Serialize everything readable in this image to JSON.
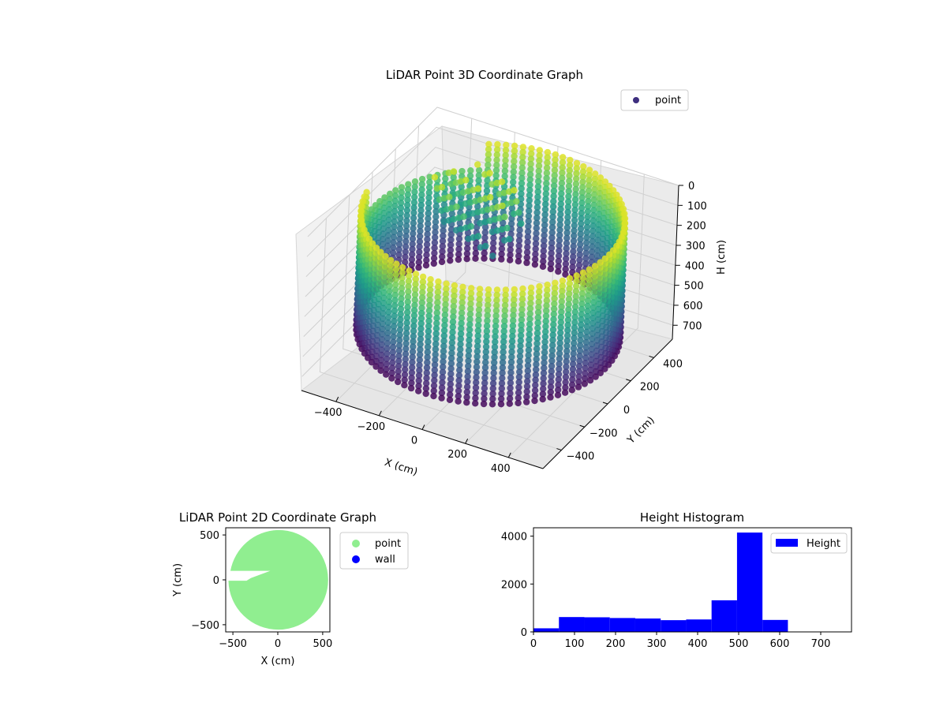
{
  "chart_data": [
    {
      "type": "scatter3d",
      "title": "LiDAR Point 3D Coordinate Graph",
      "xlabel": "X (cm)",
      "ylabel": "Y (cm)",
      "zlabel": "H (cm)",
      "x_ticks": [
        -400,
        -200,
        0,
        200,
        400
      ],
      "y_ticks": [
        -400,
        -200,
        0,
        200,
        400
      ],
      "z_ticks": [
        0,
        100,
        200,
        300,
        400,
        500,
        600,
        700
      ],
      "xlim": [
        -560,
        560
      ],
      "ylim": [
        -560,
        560
      ],
      "zlim": [
        770,
        0
      ],
      "colormap": "viridis",
      "legend": {
        "label": "point",
        "placement": "upper-right",
        "color": "#3e2f7f"
      },
      "description_shape": "cylindrical wall of points, radius ~550 cm, heights 0-620 cm"
    },
    {
      "type": "scatter",
      "title": "LiDAR Point 2D Coordinate Graph",
      "xlabel": "X (cm)",
      "ylabel": "Y (cm)",
      "x_ticks": [
        -500,
        0,
        500
      ],
      "y_ticks": [
        500,
        0,
        -500
      ],
      "xlim": [
        -580,
        580
      ],
      "ylim": [
        -580,
        580
      ],
      "series": [
        {
          "name": "point",
          "color": "#90ee90"
        },
        {
          "name": "wall",
          "color": "#0000ff"
        }
      ],
      "legend_placement": "outside-right"
    },
    {
      "type": "bar",
      "title": "Height Histogram",
      "x_ticks": [
        0,
        100,
        200,
        300,
        400,
        500,
        600,
        700
      ],
      "y_ticks": [
        0,
        2000,
        4000
      ],
      "xlim": [
        0,
        775
      ],
      "ylim": [
        0,
        4350
      ],
      "bin_edges": [
        0,
        62,
        124,
        186,
        248,
        310,
        372,
        434,
        496,
        558,
        620
      ],
      "values": [
        150,
        620,
        610,
        580,
        560,
        490,
        520,
        1320,
        4150,
        500
      ],
      "series": [
        {
          "name": "Height",
          "color": "#0000ff"
        }
      ],
      "legend_placement": "upper-right"
    }
  ]
}
